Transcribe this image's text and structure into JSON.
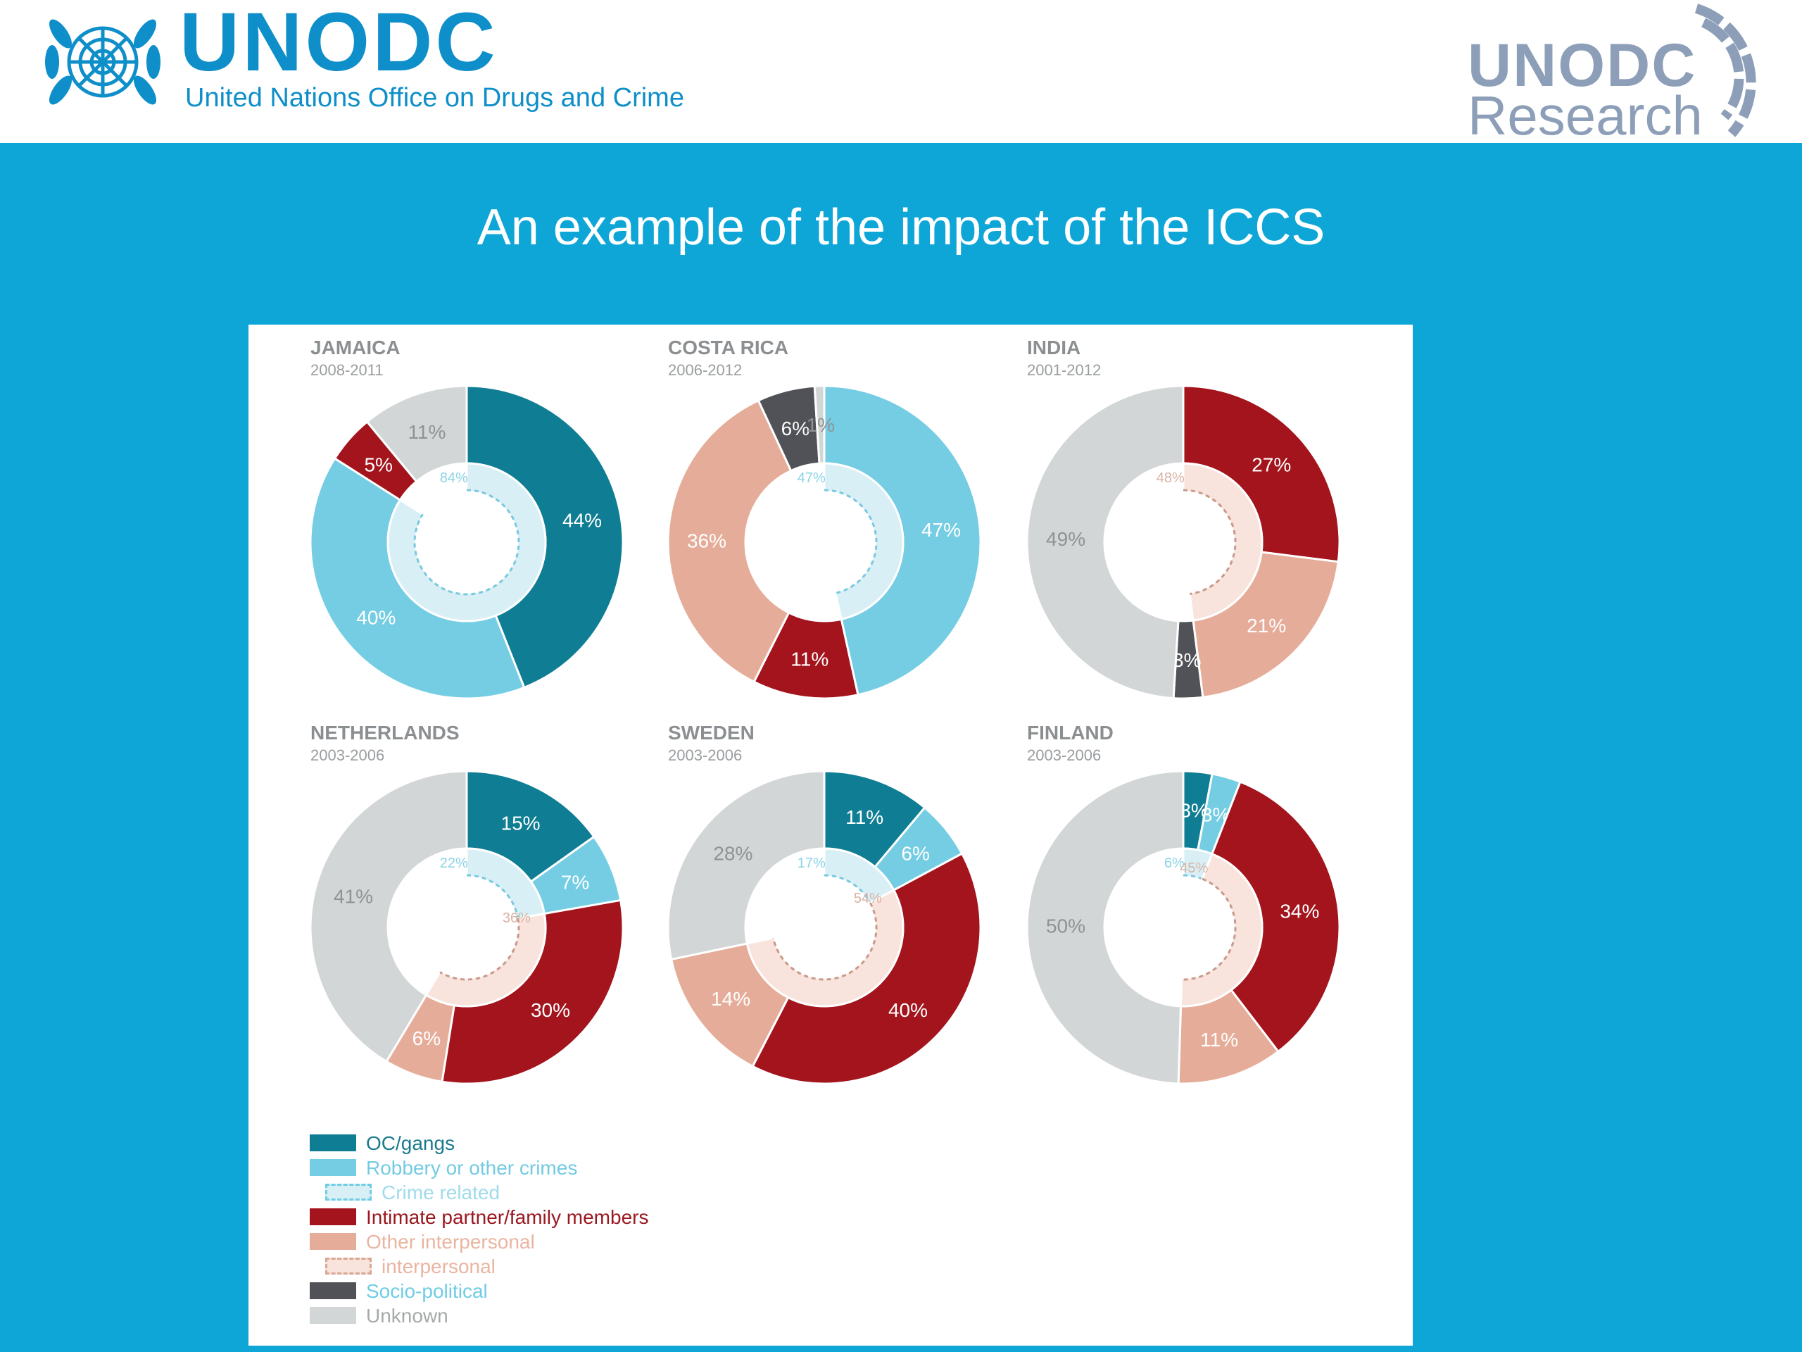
{
  "header": {
    "brand_title": "UNODC",
    "brand_subtitle": "United Nations Office on Drugs and Crime",
    "research_top": "UNODC",
    "research_bottom": "Research"
  },
  "title": "An example of the impact of the ICCS",
  "colors": {
    "oc_gangs": "#0f7d93",
    "robbery": "#74cde3",
    "crime_related": "#d8eff6",
    "intimate": "#a3141c",
    "other_interpersonal": "#e5ad99",
    "interpersonal": "#f8e4dc",
    "socio_political": "#515257",
    "unknown": "#d3d6d7"
  },
  "legend": [
    {
      "label": "OC/gangs",
      "swatch": "oc_gangs",
      "text_color": "#1a7a8e",
      "dashed": false
    },
    {
      "label": "Robbery or other crimes",
      "swatch": "robbery",
      "text_color": "#73cbe2",
      "dashed": false
    },
    {
      "label": "Crime related",
      "swatch": "crime_related",
      "text_color": "#9fdbeb",
      "dashed": "blue"
    },
    {
      "label": "Intimate partner/family members",
      "swatch": "intimate",
      "text_color": "#9b1820",
      "dashed": false
    },
    {
      "label": "Other interpersonal",
      "swatch": "other_interpersonal",
      "text_color": "#e9b5a1",
      "dashed": false
    },
    {
      "label": "interpersonal",
      "swatch": "interpersonal",
      "text_color": "#e9b5a1",
      "dashed": "pink"
    },
    {
      "label": "Socio-political",
      "swatch": "socio_political",
      "text_color": "#6fcde3",
      "dashed": false
    },
    {
      "label": "Unknown",
      "swatch": "unknown",
      "text_color": "#a6a9aa",
      "dashed": false
    }
  ],
  "chart_data": [
    {
      "type": "pie",
      "country": "JAMAICA",
      "period": "2008-2011",
      "slices": [
        {
          "category": "OC/gangs",
          "value": 44,
          "label": "44%"
        },
        {
          "category": "Robbery or other crimes",
          "value": 40,
          "label": "40%"
        },
        {
          "category": "Intimate partner/family members",
          "value": 5,
          "label": "5%"
        },
        {
          "category": "Unknown",
          "value": 11,
          "label": "11%"
        }
      ],
      "inner": [
        {
          "category": "Crime related",
          "value": 84,
          "label": "84%"
        }
      ]
    },
    {
      "type": "pie",
      "country": "COSTA RICA",
      "period": "2006-2012",
      "slices": [
        {
          "category": "Robbery or other crimes",
          "value": 47,
          "label": "47%"
        },
        {
          "category": "Intimate partner/family members",
          "value": 11,
          "label": "11%"
        },
        {
          "category": "Other interpersonal",
          "value": 36,
          "label": "36%"
        },
        {
          "category": "Socio-political",
          "value": 6,
          "label": "6%"
        },
        {
          "category": "Unknown",
          "value": 1,
          "label": "1%"
        }
      ],
      "inner": [
        {
          "category": "Crime related",
          "value": 47,
          "label": "47%"
        }
      ]
    },
    {
      "type": "pie",
      "country": "INDIA",
      "period": "2001-2012",
      "slices": [
        {
          "category": "Intimate partner/family members",
          "value": 27,
          "label": "27%"
        },
        {
          "category": "Other interpersonal",
          "value": 21,
          "label": "21%"
        },
        {
          "category": "Socio-political",
          "value": 3,
          "label": "3%"
        },
        {
          "category": "Unknown",
          "value": 49,
          "label": "49%"
        }
      ],
      "inner": [
        {
          "category": "interpersonal",
          "value": 48,
          "label": "48%"
        }
      ]
    },
    {
      "type": "pie",
      "country": "NETHERLANDS",
      "period": "2003-2006",
      "slices": [
        {
          "category": "OC/gangs",
          "value": 15,
          "label": "15%"
        },
        {
          "category": "Robbery or other crimes",
          "value": 7,
          "label": "7%"
        },
        {
          "category": "Intimate partner/family members",
          "value": 30,
          "label": "30%"
        },
        {
          "category": "Other interpersonal",
          "value": 6,
          "label": "6%"
        },
        {
          "category": "Unknown",
          "value": 41,
          "label": "41%"
        }
      ],
      "inner": [
        {
          "category": "Crime related",
          "value": 22,
          "label": "22%"
        },
        {
          "category": "interpersonal",
          "value": 36,
          "label": "36%"
        }
      ]
    },
    {
      "type": "pie",
      "country": "SWEDEN",
      "period": "2003-2006",
      "slices": [
        {
          "category": "OC/gangs",
          "value": 11,
          "label": "11%"
        },
        {
          "category": "Robbery or other crimes",
          "value": 6,
          "label": "6%"
        },
        {
          "category": "Intimate partner/family members",
          "value": 40,
          "label": "40%"
        },
        {
          "category": "Other interpersonal",
          "value": 14,
          "label": "14%"
        },
        {
          "category": "Unknown",
          "value": 28,
          "label": "28%"
        }
      ],
      "inner": [
        {
          "category": "Crime related",
          "value": 17,
          "label": "17%"
        },
        {
          "category": "interpersonal",
          "value": 54,
          "label": "54%"
        }
      ]
    },
    {
      "type": "pie",
      "country": "FINLAND",
      "period": "2003-2006",
      "slices": [
        {
          "category": "OC/gangs",
          "value": 3,
          "label": "3%"
        },
        {
          "category": "Robbery or other crimes",
          "value": 3,
          "label": "3%"
        },
        {
          "category": "Intimate partner/family members",
          "value": 34,
          "label": "34%"
        },
        {
          "category": "Other interpersonal",
          "value": 11,
          "label": "11%"
        },
        {
          "category": "Unknown",
          "value": 50,
          "label": "50%"
        }
      ],
      "inner": [
        {
          "category": "Crime related",
          "value": 6,
          "label": "6%"
        },
        {
          "category": "interpersonal",
          "value": 45,
          "label": "45%"
        }
      ]
    }
  ]
}
